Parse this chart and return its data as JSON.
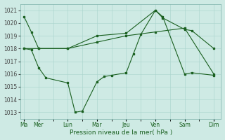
{
  "xlabel": "Pression niveau de la mer( hPa )",
  "background_color": "#ceeae4",
  "grid_color": "#a8d4cc",
  "line_color": "#1a6020",
  "ylim": [
    1012.5,
    1021.5
  ],
  "yticks": [
    1013,
    1014,
    1015,
    1016,
    1017,
    1018,
    1019,
    1020,
    1021
  ],
  "day_labels": [
    "Ma",
    "Mer",
    "",
    "Lun",
    "",
    "Mar",
    "",
    "Jeu",
    "",
    "Ven",
    "",
    "Sam",
    "",
    "Dim"
  ],
  "day_tick_positions": [
    0,
    2,
    4,
    6,
    8,
    10,
    12,
    14,
    16,
    18,
    20,
    22,
    24,
    26
  ],
  "major_day_labels": [
    "Ma",
    "Mer",
    "Lun",
    "Mar",
    "Jeu",
    "Ven",
    "Sam",
    "Dim"
  ],
  "major_day_positions": [
    0,
    2,
    6,
    10,
    14,
    18,
    22,
    26
  ],
  "xlim": [
    -0.5,
    27
  ],
  "series1_x": [
    0,
    1,
    2,
    6,
    10,
    14,
    18,
    19,
    22,
    23,
    26
  ],
  "series1_y": [
    1020.5,
    1019.3,
    1018.0,
    1018.0,
    1019.0,
    1019.2,
    1021.0,
    1020.4,
    1019.5,
    1019.4,
    1018.0
  ],
  "series2_x": [
    0,
    1,
    2,
    3,
    6,
    7,
    8,
    10,
    11,
    12,
    14,
    15,
    16,
    18,
    19,
    22,
    23,
    26
  ],
  "series2_y": [
    1018.0,
    1017.9,
    1016.5,
    1015.7,
    1015.3,
    1013.0,
    1013.1,
    1015.4,
    1015.8,
    1015.9,
    1016.1,
    1017.6,
    1019.1,
    1021.0,
    1020.5,
    1016.0,
    1016.1,
    1015.9
  ],
  "series3_x": [
    0,
    2,
    6,
    10,
    14,
    18,
    22,
    26
  ],
  "series3_y": [
    1018.0,
    1018.0,
    1018.0,
    1018.5,
    1019.0,
    1019.3,
    1019.6,
    1016.0
  ]
}
